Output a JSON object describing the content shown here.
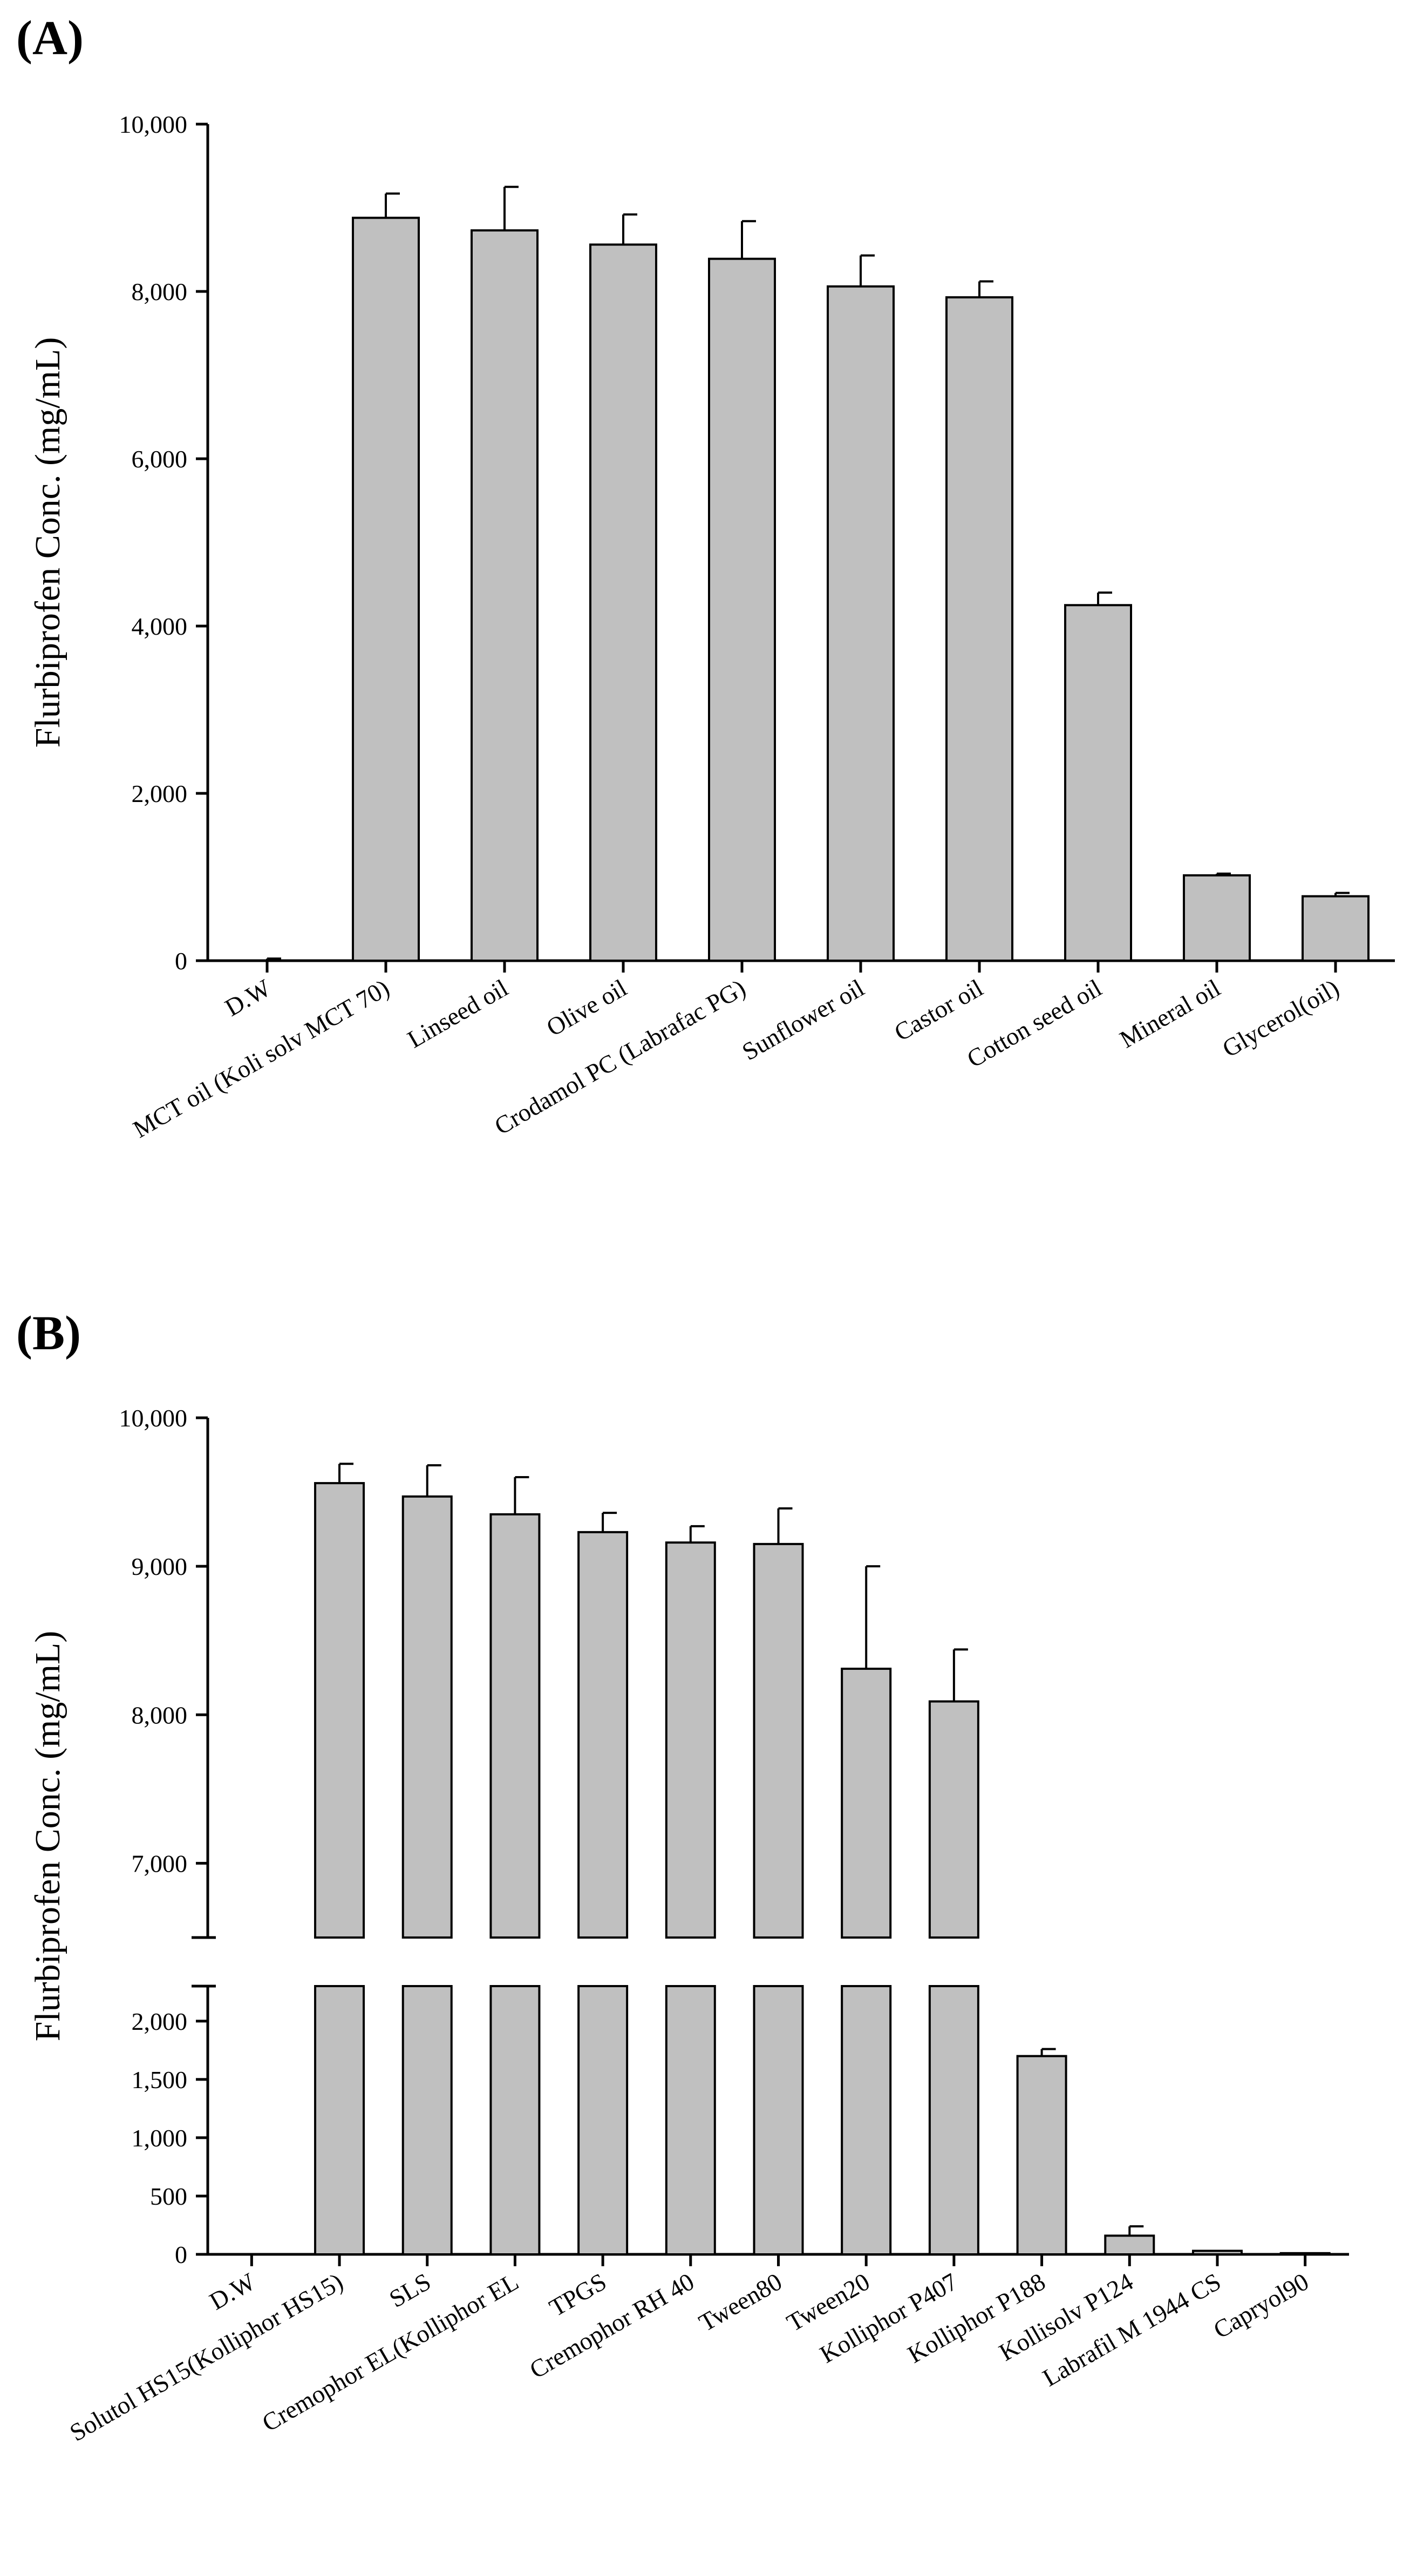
{
  "chart_data": [
    {
      "type": "bar",
      "panel_label": "(A)",
      "ylabel": "Flurbiprofen Conc. (mg/mL)",
      "ylim": [
        0,
        10000
      ],
      "yticks": [
        0,
        2000,
        4000,
        6000,
        8000,
        10000
      ],
      "ytick_labels": [
        "0",
        "2,000",
        "4,000",
        "6,000",
        "8,000",
        "10,000"
      ],
      "categories": [
        "D.W",
        "MCT oil (Koli solv MCT 70)",
        "Linseed oil",
        "Olive oil",
        "Crodamol PC (Labrafac PG)",
        "Sunflower oil",
        "Castor oil",
        "Cotton seed oil",
        "Mineral oil",
        "Glycerol(oil)"
      ],
      "values": [
        5,
        8880,
        8730,
        8560,
        8390,
        8060,
        7930,
        4250,
        1020,
        770
      ],
      "errors": [
        20,
        290,
        520,
        360,
        450,
        370,
        190,
        150,
        20,
        40
      ]
    },
    {
      "type": "bar",
      "panel_label": "(B)",
      "ylabel": "Flurbiprofen Conc. (mg/mL)",
      "broken_axis": true,
      "ylim_lower": [
        0,
        2300
      ],
      "ylim_upper": [
        6500,
        10000
      ],
      "yticks_lower": [
        0,
        500,
        1000,
        1500,
        2000
      ],
      "ytick_labels_lower": [
        "0",
        "500",
        "1,000",
        "1,500",
        "2,000"
      ],
      "yticks_upper": [
        7000,
        8000,
        9000,
        10000
      ],
      "ytick_labels_upper": [
        "7,000",
        "8,000",
        "9,000",
        "10,000"
      ],
      "categories": [
        "D.W",
        "Solutol HS15(Kolliphor HS15)",
        "SLS",
        "Cremophor EL(Kolliphor EL",
        "TPGS",
        "Cremophor RH 40",
        "Tween80",
        "Tween20",
        "Kolliphor P407",
        "Kolliphor P188",
        "Kollisolv P124",
        "Labrafil M 1944 CS",
        "Capryol90"
      ],
      "values": [
        5,
        9560,
        9470,
        9350,
        9230,
        9160,
        9150,
        8310,
        8090,
        1700,
        160,
        30,
        10
      ],
      "errors": [
        5,
        130,
        210,
        250,
        130,
        110,
        240,
        690,
        350,
        60,
        80,
        5,
        5
      ]
    }
  ]
}
